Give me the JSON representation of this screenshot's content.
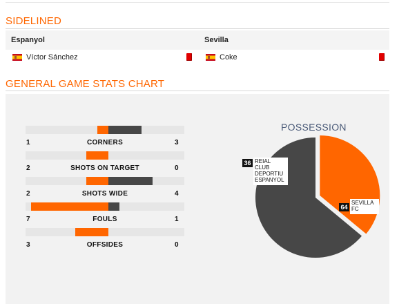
{
  "sidelined": {
    "title": "SIDELINED",
    "home_team": "Espanyol",
    "away_team": "Sevilla",
    "home_player": "Víctor Sánchez",
    "away_player": "Coke"
  },
  "stats_section": {
    "title": "GENERAL GAME STATS CHART"
  },
  "stats": [
    {
      "label": "CORNERS",
      "home": "1",
      "away": "3",
      "home_num": 1,
      "away_num": 3
    },
    {
      "label": "SHOTS ON TARGET",
      "home": "2",
      "away": "0",
      "home_num": 2,
      "away_num": 0
    },
    {
      "label": "SHOTS WIDE",
      "home": "2",
      "away": "4",
      "home_num": 2,
      "away_num": 4
    },
    {
      "label": "FOULS",
      "home": "7",
      "away": "1",
      "home_num": 7,
      "away_num": 1
    },
    {
      "label": "OFFSIDES",
      "home": "3",
      "away": "0",
      "home_num": 3,
      "away_num": 0
    }
  ],
  "colors": {
    "accent": "#ff6600",
    "home": "#ff6600",
    "away": "#474747"
  },
  "chart_data": {
    "type": "pie",
    "title": "POSSESSION",
    "slices": [
      {
        "label_lines": [
          "REIAL",
          "CLUB",
          "DEPORTIU",
          "ESPANYOL"
        ],
        "value": 36,
        "color": "#ff6600"
      },
      {
        "label_lines": [
          "SEVILLA",
          "FC"
        ],
        "value": 64,
        "color": "#474747"
      }
    ]
  }
}
